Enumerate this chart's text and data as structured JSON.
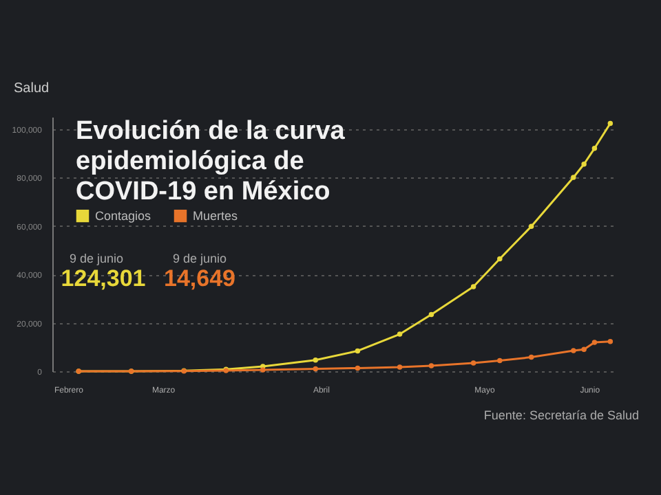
{
  "chart_data": {
    "type": "line",
    "title": "Evolución de la curva epidemiológica de COVID-19 en México",
    "subtitle": "Salud",
    "x": [
      "--02-28",
      "--03-10",
      "--03-20",
      "--03-28",
      "--04-04",
      "--04-14",
      "--04-22",
      "--04-30",
      "--05-06",
      "--05-14",
      "--05-19",
      "--05-25",
      "--06-02",
      "--06-04",
      "--06-06",
      "--06-09"
    ],
    "series": [
      {
        "name": "Contagios",
        "color": "#e8d83a",
        "values": [
          0,
          0,
          200,
          800,
          2000,
          4600,
          8400,
          15300,
          23400,
          34900,
          46400,
          59800,
          80000,
          85500,
          92000,
          102300
        ]
      },
      {
        "name": "Muertes",
        "color": "#e8742a",
        "values": [
          0,
          0,
          100,
          300,
          600,
          1000,
          1300,
          1700,
          2300,
          3400,
          4400,
          5800,
          8500,
          9000,
          11900,
          12300
        ]
      }
    ],
    "xlim": [
      "--02-23",
      "--06-10"
    ],
    "xticks": [
      {
        "value": "--02-26",
        "label": "Febrero"
      },
      {
        "value": "--03-16",
        "label": "Marzo"
      },
      {
        "value": "--04-15",
        "label": "Abril"
      },
      {
        "value": "--05-16",
        "label": "Mayo"
      },
      {
        "value": "--06-05",
        "label": "Junio"
      }
    ],
    "ylim": [
      0,
      105000
    ],
    "yticks": [
      0,
      {
        "value": 20000,
        "label": "20,000"
      },
      {
        "value": 40000,
        "label": "40,000"
      },
      {
        "value": 60000,
        "label": "60,000"
      },
      {
        "value": 80000,
        "label": "80,000"
      },
      {
        "value": 100000,
        "label": "100,000"
      }
    ],
    "grid": "y",
    "legend": "top left",
    "marker": "circle",
    "line_style": "solid",
    "annotations": [
      "9 de junio",
      "124,301",
      "9 de junio",
      "14,649",
      "Fuente: Secretaría de Salud"
    ]
  }
}
